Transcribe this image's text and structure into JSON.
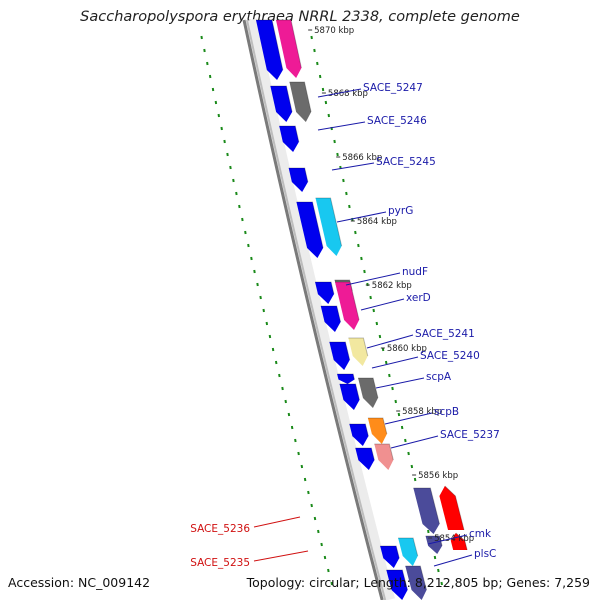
{
  "title": "Saccharopolyspora erythraea NRRL 2338, complete genome",
  "accession_text": "Accession: NC_009142",
  "topology_text": "Topology: circular; Length: 8,212,805 bp; Genes: 7,259",
  "colors": {
    "forward": "#0000ee",
    "reverse": "#ff0000",
    "dark_blue": "#4b4b9a",
    "magenta": "#ee1b96",
    "gray": "#6b6b6b",
    "cyan": "#18c8f0",
    "yellow": "#f2e8a0",
    "orange": "#ff8c1a",
    "pink": "#f09090",
    "green_ticks": "#1a8a1a",
    "label_blue": "#1a1aa8",
    "label_red": "#d01010"
  },
  "kbp_ticks": [
    "5870 kbp",
    "5868 kbp",
    "5866 kbp",
    "5864 kbp",
    "5862 kbp",
    "5860 kbp",
    "5858 kbp",
    "5856 kbp",
    "5854 kbp"
  ],
  "gene_labels_forward": [
    "SACE_5247",
    "SACE_5246",
    "SACE_5245",
    "pyrG",
    "nudF",
    "xerD",
    "SACE_5241",
    "SACE_5240",
    "scpA",
    "scpB",
    "SACE_5237",
    "cmk",
    "plsC"
  ],
  "gene_labels_reverse": [
    "SACE_5236",
    "SACE_5235"
  ]
}
